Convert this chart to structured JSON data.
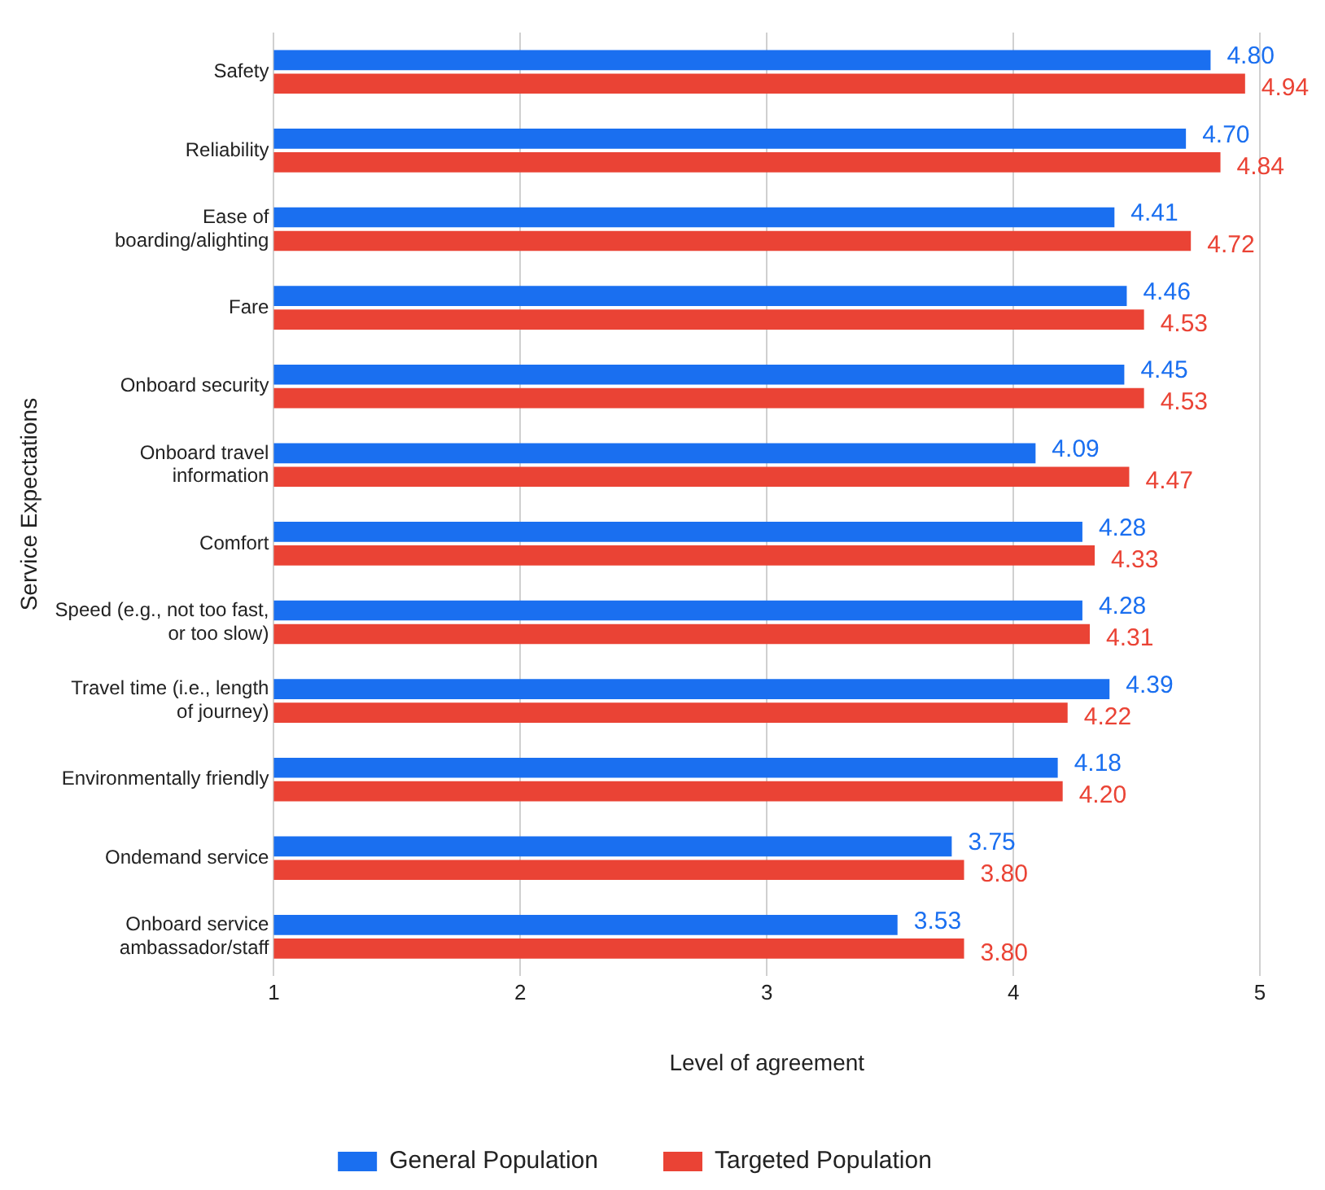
{
  "chart_data": {
    "type": "bar",
    "orientation": "horizontal",
    "xlabel": "Level of agreement",
    "ylabel": "Service Expectations",
    "categories": [
      "Safety",
      "Reliability",
      "Ease of boarding/alighting",
      "Fare",
      "Onboard security",
      "Onboard travel information",
      "Comfort",
      "Speed (e.g., not too fast, or too slow)",
      "Travel time (i.e., length of journey)",
      "Environmentally friendly",
      "Ondemand service",
      "Onboard service ambassador/staff"
    ],
    "series": [
      {
        "name": "General Population",
        "color": "#1a6ff0",
        "values": [
          4.8,
          4.7,
          4.41,
          4.46,
          4.45,
          4.09,
          4.28,
          4.28,
          4.39,
          4.18,
          3.75,
          3.53
        ],
        "value_labels": [
          "4.80",
          "4.70",
          "4.41",
          "4.46",
          "4.45",
          "4.09",
          "4.28",
          "4.28",
          "4.39",
          "4.18",
          "3.75",
          "3.53"
        ]
      },
      {
        "name": "Targeted Population",
        "color": "#ea4335",
        "values": [
          4.94,
          4.84,
          4.72,
          4.53,
          4.53,
          4.47,
          4.33,
          4.31,
          4.22,
          4.2,
          3.8,
          3.8
        ],
        "value_labels": [
          "4.94",
          "4.84",
          "4.72",
          "4.53",
          "4.53",
          "4.47",
          "4.33",
          "4.31",
          "4.22",
          "4.20",
          "3.80",
          "3.80"
        ]
      }
    ],
    "xlim": [
      1,
      5
    ],
    "xticks": [
      1,
      2,
      3,
      4,
      5
    ],
    "grid": "x",
    "legend": "bottom"
  }
}
